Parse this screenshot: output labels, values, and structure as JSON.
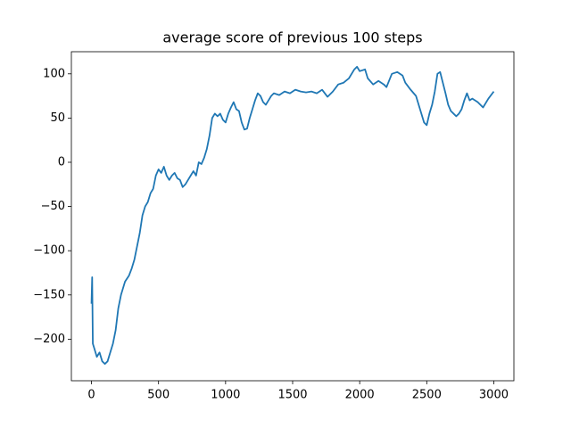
{
  "chart_data": {
    "type": "line",
    "title": "average score of previous 100 steps",
    "x": [
      0,
      5,
      10,
      20,
      40,
      60,
      80,
      100,
      120,
      140,
      160,
      180,
      200,
      220,
      250,
      280,
      300,
      320,
      340,
      360,
      380,
      400,
      420,
      440,
      460,
      480,
      500,
      520,
      540,
      560,
      580,
      600,
      620,
      640,
      660,
      680,
      700,
      720,
      740,
      760,
      780,
      800,
      820,
      840,
      860,
      880,
      900,
      920,
      940,
      960,
      980,
      1000,
      1020,
      1040,
      1060,
      1080,
      1100,
      1120,
      1140,
      1160,
      1180,
      1200,
      1220,
      1240,
      1260,
      1280,
      1300,
      1320,
      1340,
      1360,
      1400,
      1440,
      1480,
      1520,
      1560,
      1600,
      1640,
      1680,
      1720,
      1760,
      1800,
      1840,
      1880,
      1920,
      1960,
      1980,
      2000,
      2040,
      2060,
      2100,
      2140,
      2180,
      2200,
      2240,
      2280,
      2320,
      2340,
      2380,
      2420,
      2450,
      2480,
      2500,
      2520,
      2540,
      2560,
      2580,
      2600,
      2620,
      2640,
      2660,
      2680,
      2700,
      2720,
      2740,
      2760,
      2780,
      2800,
      2820,
      2840,
      2880,
      2920,
      2960,
      3000
    ],
    "series": [
      {
        "name": "average score",
        "color": "#1f77b4",
        "values": [
          -160,
          -130,
          -205,
          -210,
          -220,
          -215,
          -225,
          -228,
          -225,
          -215,
          -205,
          -190,
          -165,
          -150,
          -135,
          -128,
          -120,
          -110,
          -95,
          -80,
          -60,
          -50,
          -45,
          -35,
          -30,
          -15,
          -8,
          -12,
          -5,
          -15,
          -20,
          -15,
          -12,
          -18,
          -20,
          -28,
          -25,
          -20,
          -15,
          -10,
          -15,
          0,
          -2,
          5,
          15,
          30,
          50,
          55,
          52,
          55,
          48,
          45,
          55,
          62,
          68,
          60,
          58,
          45,
          37,
          38,
          50,
          60,
          70,
          78,
          75,
          68,
          65,
          70,
          75,
          78,
          76,
          80,
          78,
          82,
          80,
          79,
          80,
          78,
          82,
          74,
          80,
          88,
          90,
          95,
          105,
          108,
          103,
          105,
          95,
          88,
          92,
          88,
          85,
          100,
          102,
          98,
          90,
          82,
          75,
          60,
          45,
          42,
          55,
          65,
          80,
          100,
          102,
          90,
          78,
          65,
          58,
          55,
          52,
          55,
          60,
          70,
          78,
          70,
          72,
          68,
          62,
          72,
          80
        ]
      }
    ],
    "xlim": [
      -150,
      3150
    ],
    "ylim": [
      -247,
      125
    ],
    "xticks": [
      0,
      500,
      1000,
      1500,
      2000,
      2500,
      3000
    ],
    "yticks": [
      {
        "value": -200,
        "label": "−200"
      },
      {
        "value": -150,
        "label": "−150"
      },
      {
        "value": -100,
        "label": "−100"
      },
      {
        "value": -50,
        "label": "−50"
      },
      0,
      50,
      100
    ]
  }
}
